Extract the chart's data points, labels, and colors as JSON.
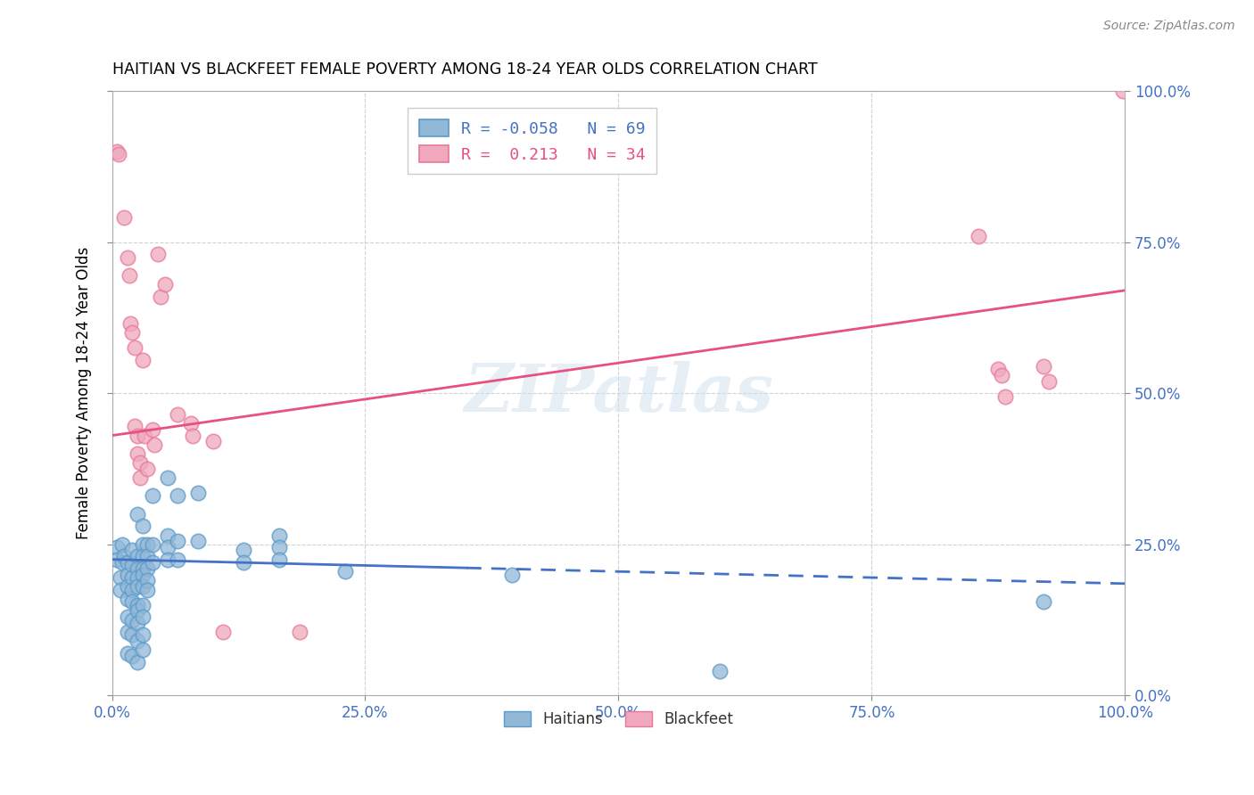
{
  "title": "HAITIAN VS BLACKFEET FEMALE POVERTY AMONG 18-24 YEAR OLDS CORRELATION CHART",
  "source": "Source: ZipAtlas.com",
  "ylabel": "Female Poverty Among 18-24 Year Olds",
  "xlim": [
    0,
    1
  ],
  "ylim": [
    0,
    1
  ],
  "ytick_labels": [
    "0.0%",
    "25.0%",
    "50.0%",
    "75.0%",
    "100.0%"
  ],
  "ytick_values": [
    0,
    0.25,
    0.5,
    0.75,
    1.0
  ],
  "xtick_labels": [
    "0.0%",
    "25.0%",
    "50.0%",
    "75.0%",
    "100.0%"
  ],
  "xtick_values": [
    0,
    0.25,
    0.5,
    0.75,
    1.0
  ],
  "watermark": "ZIPatlas",
  "blue_color": "#92b8d8",
  "pink_color": "#f0a8bc",
  "blue_edge_color": "#5a9ac8",
  "pink_edge_color": "#e87898",
  "blue_line_color": "#4472c4",
  "pink_line_color": "#e85080",
  "blue_scatter": [
    [
      0.005,
      0.245
    ],
    [
      0.005,
      0.225
    ],
    [
      0.008,
      0.195
    ],
    [
      0.008,
      0.175
    ],
    [
      0.01,
      0.25
    ],
    [
      0.01,
      0.22
    ],
    [
      0.012,
      0.23
    ],
    [
      0.015,
      0.22
    ],
    [
      0.015,
      0.2
    ],
    [
      0.015,
      0.18
    ],
    [
      0.015,
      0.16
    ],
    [
      0.015,
      0.13
    ],
    [
      0.015,
      0.105
    ],
    [
      0.015,
      0.07
    ],
    [
      0.02,
      0.24
    ],
    [
      0.02,
      0.215
    ],
    [
      0.02,
      0.195
    ],
    [
      0.02,
      0.175
    ],
    [
      0.02,
      0.155
    ],
    [
      0.02,
      0.125
    ],
    [
      0.02,
      0.1
    ],
    [
      0.02,
      0.065
    ],
    [
      0.025,
      0.3
    ],
    [
      0.025,
      0.23
    ],
    [
      0.025,
      0.21
    ],
    [
      0.025,
      0.195
    ],
    [
      0.025,
      0.18
    ],
    [
      0.025,
      0.15
    ],
    [
      0.025,
      0.14
    ],
    [
      0.025,
      0.12
    ],
    [
      0.025,
      0.09
    ],
    [
      0.025,
      0.055
    ],
    [
      0.03,
      0.28
    ],
    [
      0.03,
      0.25
    ],
    [
      0.03,
      0.23
    ],
    [
      0.03,
      0.21
    ],
    [
      0.03,
      0.2
    ],
    [
      0.03,
      0.18
    ],
    [
      0.03,
      0.15
    ],
    [
      0.03,
      0.13
    ],
    [
      0.03,
      0.1
    ],
    [
      0.03,
      0.075
    ],
    [
      0.035,
      0.25
    ],
    [
      0.035,
      0.23
    ],
    [
      0.035,
      0.21
    ],
    [
      0.035,
      0.19
    ],
    [
      0.035,
      0.175
    ],
    [
      0.04,
      0.33
    ],
    [
      0.04,
      0.25
    ],
    [
      0.04,
      0.22
    ],
    [
      0.055,
      0.36
    ],
    [
      0.055,
      0.265
    ],
    [
      0.055,
      0.245
    ],
    [
      0.055,
      0.225
    ],
    [
      0.065,
      0.33
    ],
    [
      0.065,
      0.255
    ],
    [
      0.065,
      0.225
    ],
    [
      0.085,
      0.335
    ],
    [
      0.085,
      0.255
    ],
    [
      0.13,
      0.24
    ],
    [
      0.13,
      0.22
    ],
    [
      0.165,
      0.265
    ],
    [
      0.165,
      0.245
    ],
    [
      0.165,
      0.225
    ],
    [
      0.23,
      0.205
    ],
    [
      0.395,
      0.2
    ],
    [
      0.6,
      0.04
    ],
    [
      0.92,
      0.155
    ]
  ],
  "pink_scatter": [
    [
      0.005,
      0.9
    ],
    [
      0.007,
      0.895
    ],
    [
      0.012,
      0.79
    ],
    [
      0.015,
      0.725
    ],
    [
      0.017,
      0.695
    ],
    [
      0.018,
      0.615
    ],
    [
      0.02,
      0.6
    ],
    [
      0.022,
      0.575
    ],
    [
      0.022,
      0.445
    ],
    [
      0.025,
      0.43
    ],
    [
      0.025,
      0.4
    ],
    [
      0.028,
      0.385
    ],
    [
      0.028,
      0.36
    ],
    [
      0.03,
      0.555
    ],
    [
      0.032,
      0.43
    ],
    [
      0.035,
      0.375
    ],
    [
      0.04,
      0.44
    ],
    [
      0.042,
      0.415
    ],
    [
      0.045,
      0.73
    ],
    [
      0.048,
      0.66
    ],
    [
      0.052,
      0.68
    ],
    [
      0.065,
      0.465
    ],
    [
      0.078,
      0.45
    ],
    [
      0.08,
      0.43
    ],
    [
      0.1,
      0.42
    ],
    [
      0.11,
      0.105
    ],
    [
      0.185,
      0.105
    ],
    [
      0.855,
      0.76
    ],
    [
      0.875,
      0.54
    ],
    [
      0.878,
      0.53
    ],
    [
      0.882,
      0.495
    ],
    [
      0.92,
      0.545
    ],
    [
      0.925,
      0.52
    ],
    [
      0.998,
      1.0
    ]
  ],
  "blue_line": {
    "x0": 0.0,
    "y0": 0.225,
    "x1": 1.0,
    "y1": 0.185
  },
  "blue_line_solid_end": 0.35,
  "pink_line": {
    "x0": 0.0,
    "y0": 0.43,
    "x1": 1.0,
    "y1": 0.67
  }
}
